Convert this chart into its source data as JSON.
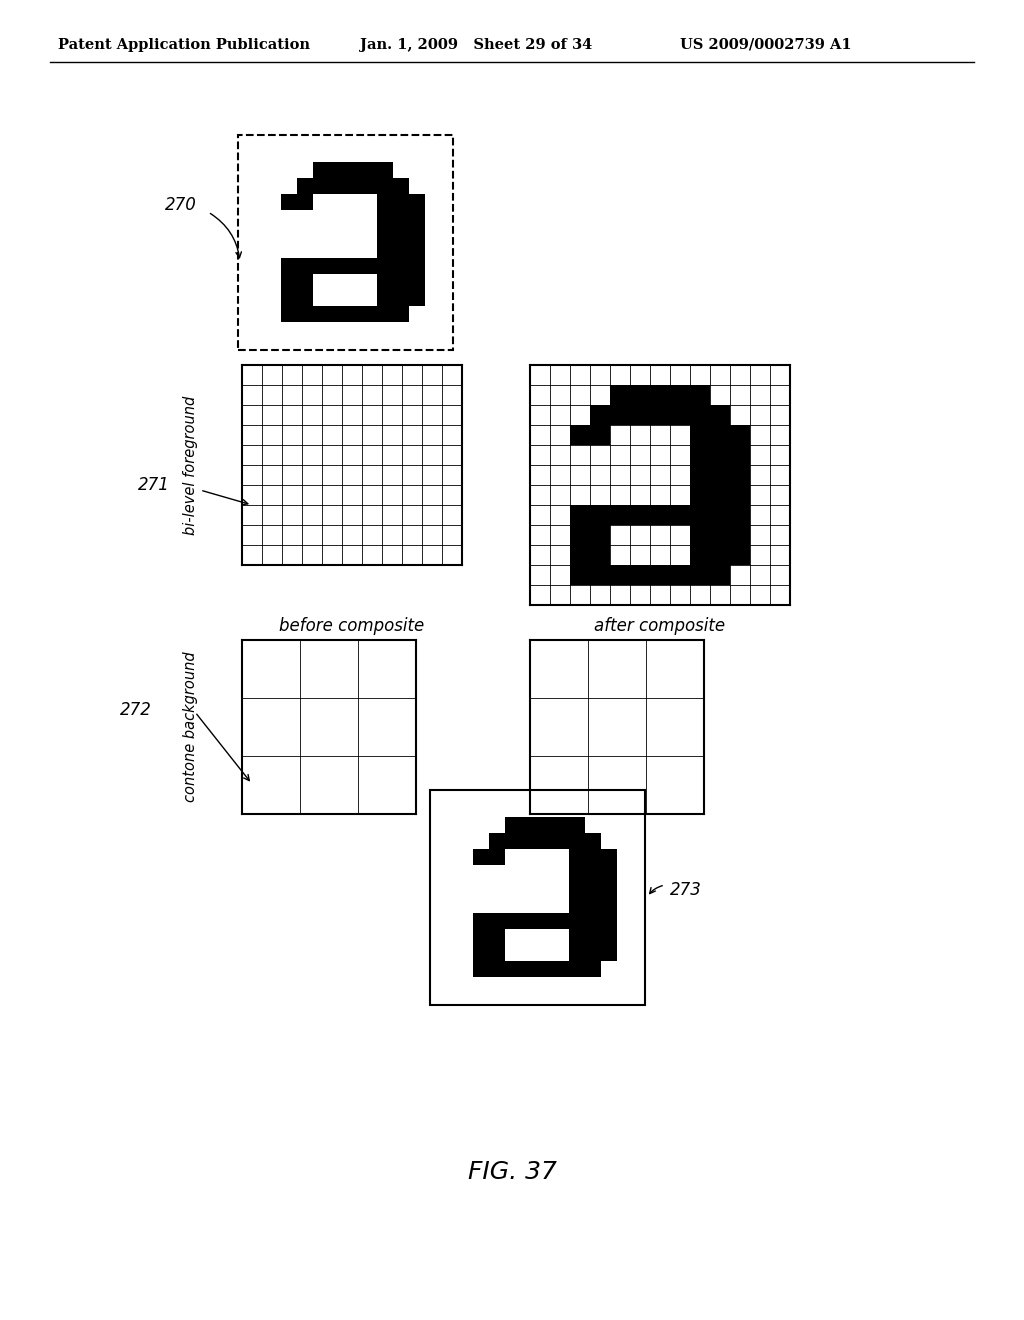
{
  "title_left": "Patent Application Publication",
  "title_mid": "Jan. 1, 2009   Sheet 29 of 34",
  "title_right": "US 2009/0002739 A1",
  "fig_label": "FIG. 37",
  "label_270": "270",
  "label_271": "271",
  "label_272": "272",
  "label_273": "273",
  "text_before": "before composite",
  "text_after": "after composite",
  "text_bilevel": "bi-level foreground",
  "text_contone": "contone background",
  "bg_color": "#ffffff",
  "fg_color": "#000000",
  "letter_a_top": [
    [
      0,
      0,
      0,
      0,
      0,
      0,
      0,
      0,
      0,
      0,
      0,
      0
    ],
    [
      0,
      0,
      0,
      0,
      1,
      1,
      1,
      1,
      1,
      0,
      0,
      0
    ],
    [
      0,
      0,
      0,
      1,
      1,
      1,
      1,
      1,
      1,
      1,
      0,
      0
    ],
    [
      0,
      0,
      1,
      1,
      0,
      0,
      0,
      0,
      1,
      1,
      1,
      0
    ],
    [
      0,
      0,
      0,
      0,
      0,
      0,
      0,
      0,
      1,
      1,
      1,
      0
    ],
    [
      0,
      0,
      0,
      0,
      0,
      0,
      0,
      0,
      1,
      1,
      1,
      0
    ],
    [
      0,
      0,
      0,
      0,
      0,
      0,
      0,
      0,
      1,
      1,
      1,
      0
    ],
    [
      0,
      0,
      1,
      1,
      1,
      1,
      1,
      1,
      1,
      1,
      1,
      0
    ],
    [
      0,
      0,
      1,
      1,
      0,
      0,
      0,
      0,
      1,
      1,
      1,
      0
    ],
    [
      0,
      0,
      1,
      1,
      0,
      0,
      0,
      0,
      1,
      1,
      1,
      0
    ],
    [
      0,
      0,
      1,
      1,
      1,
      1,
      1,
      1,
      1,
      1,
      0,
      0
    ],
    [
      0,
      0,
      0,
      0,
      0,
      0,
      0,
      0,
      0,
      0,
      0,
      0
    ]
  ],
  "letter_a_grid": [
    [
      0,
      0,
      0,
      0,
      0,
      0,
      0,
      0,
      0,
      0,
      0,
      0,
      0
    ],
    [
      0,
      0,
      0,
      0,
      1,
      1,
      1,
      1,
      1,
      0,
      0,
      0,
      0
    ],
    [
      0,
      0,
      0,
      1,
      1,
      1,
      1,
      1,
      1,
      1,
      0,
      0,
      0
    ],
    [
      0,
      0,
      1,
      1,
      0,
      0,
      0,
      0,
      1,
      1,
      1,
      0,
      0
    ],
    [
      0,
      0,
      0,
      0,
      0,
      0,
      0,
      0,
      1,
      1,
      1,
      0,
      0
    ],
    [
      0,
      0,
      0,
      0,
      0,
      0,
      0,
      0,
      1,
      1,
      1,
      0,
      0
    ],
    [
      0,
      0,
      0,
      0,
      0,
      0,
      0,
      0,
      1,
      1,
      1,
      0,
      0
    ],
    [
      0,
      0,
      1,
      1,
      1,
      1,
      1,
      1,
      1,
      1,
      1,
      0,
      0
    ],
    [
      0,
      0,
      1,
      1,
      0,
      0,
      0,
      0,
      1,
      1,
      1,
      0,
      0
    ],
    [
      0,
      0,
      1,
      1,
      0,
      0,
      0,
      0,
      1,
      1,
      1,
      0,
      0
    ],
    [
      0,
      0,
      1,
      1,
      1,
      1,
      1,
      1,
      1,
      1,
      0,
      0,
      0
    ],
    [
      0,
      0,
      0,
      0,
      0,
      0,
      0,
      0,
      0,
      0,
      0,
      0,
      0
    ]
  ],
  "letter_a_bottom": [
    [
      0,
      0,
      0,
      0,
      0,
      0,
      0,
      0,
      0,
      0,
      0,
      0
    ],
    [
      0,
      0,
      0,
      0,
      1,
      1,
      1,
      1,
      1,
      0,
      0,
      0
    ],
    [
      0,
      0,
      0,
      1,
      1,
      1,
      1,
      1,
      1,
      1,
      0,
      0
    ],
    [
      0,
      0,
      1,
      1,
      0,
      0,
      0,
      0,
      1,
      1,
      1,
      0
    ],
    [
      0,
      0,
      0,
      0,
      0,
      0,
      0,
      0,
      1,
      1,
      1,
      0
    ],
    [
      0,
      0,
      0,
      0,
      0,
      0,
      0,
      0,
      1,
      1,
      1,
      0
    ],
    [
      0,
      0,
      0,
      0,
      0,
      0,
      0,
      0,
      1,
      1,
      1,
      0
    ],
    [
      0,
      0,
      1,
      1,
      1,
      1,
      1,
      1,
      1,
      1,
      1,
      0
    ],
    [
      0,
      0,
      1,
      1,
      0,
      0,
      0,
      0,
      1,
      1,
      1,
      0
    ],
    [
      0,
      0,
      1,
      1,
      0,
      0,
      0,
      0,
      1,
      1,
      1,
      0
    ],
    [
      0,
      0,
      1,
      1,
      1,
      1,
      1,
      1,
      1,
      1,
      0,
      0
    ],
    [
      0,
      0,
      0,
      0,
      0,
      0,
      0,
      0,
      0,
      0,
      0,
      0
    ]
  ]
}
